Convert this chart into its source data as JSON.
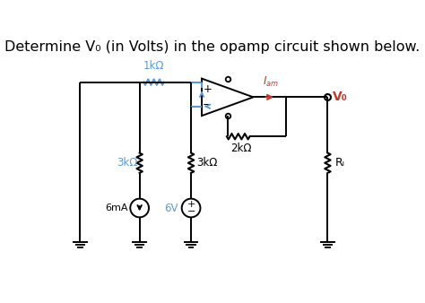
{
  "title": "Determine V₀ (in Volts) in the opamp circuit shown below.",
  "title_color": "#000000",
  "title_fontsize": 11.5,
  "bg_color": "#ffffff",
  "wire_color": "#000000",
  "blue_color": "#5b9bd5",
  "red_color": "#c0392b",
  "labels": {
    "1kohm": "1kΩ",
    "3kohm_left": "3kΩ",
    "3kohm_mid": "3kΩ",
    "2kohm": "2kΩ",
    "RL": "Rₗ",
    "6mA": "6mA",
    "6V": "6V",
    "Iam_i": "I",
    "Iam_am": "am",
    "Vo": "V₀"
  }
}
